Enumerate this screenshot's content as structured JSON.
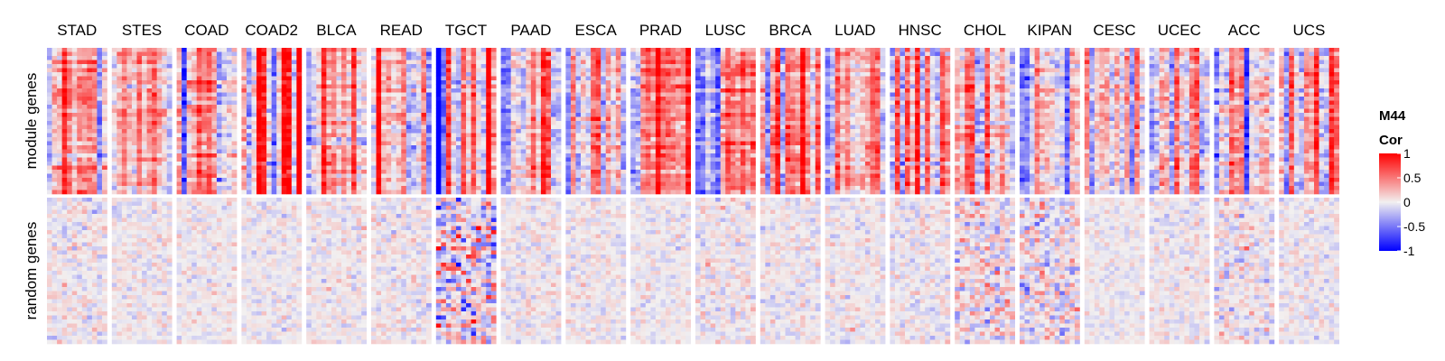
{
  "chart_data": {
    "type": "heatmap",
    "columns": [
      "STAD",
      "STES",
      "COAD",
      "COAD2",
      "BLCA",
      "READ",
      "TGCT",
      "PAAD",
      "ESCA",
      "PRAD",
      "LUSC",
      "BRCA",
      "LUAD",
      "HNSC",
      "CHOL",
      "KIPAN",
      "CESC",
      "UCEC",
      "ACC",
      "UCS"
    ],
    "rows": [
      "module genes",
      "random genes"
    ],
    "legend": {
      "title_line1": "M44",
      "title_line2": "Cor",
      "ticks": [
        {
          "value": 1,
          "label": "1"
        },
        {
          "value": 0.5,
          "label": "0.5"
        },
        {
          "value": 0,
          "label": "0"
        },
        {
          "value": -0.5,
          "label": "-0.5"
        },
        {
          "value": -1,
          "label": "-1"
        }
      ]
    },
    "scale": {
      "min": -1,
      "max": 1,
      "low_color": "#0000ff",
      "mid_color": "#f2f0f0",
      "high_color": "#ff0000"
    },
    "cells_per_block": {
      "rows": 36,
      "cols": 12
    },
    "module_genes_mean_cor": [
      0.34,
      0.48,
      0.33,
      0.38,
      0.32,
      0.22,
      0.25,
      0.19,
      0.29,
      0.22,
      0.23,
      0.26,
      0.24,
      0.2,
      0.22,
      0.18,
      0.17,
      0.16,
      0.2,
      0.14
    ],
    "random_genes_mean_cor": [
      0,
      0,
      0,
      0,
      0,
      0,
      0,
      0,
      0,
      0,
      0,
      0,
      0,
      0,
      0,
      0,
      0,
      0,
      0,
      0
    ],
    "random_genes_spread": [
      0.12,
      0.1,
      0.09,
      0.09,
      0.1,
      0.11,
      0.35,
      0.1,
      0.1,
      0.09,
      0.12,
      0.1,
      0.1,
      0.11,
      0.22,
      0.22,
      0.08,
      0.1,
      0.15,
      0.1
    ]
  }
}
